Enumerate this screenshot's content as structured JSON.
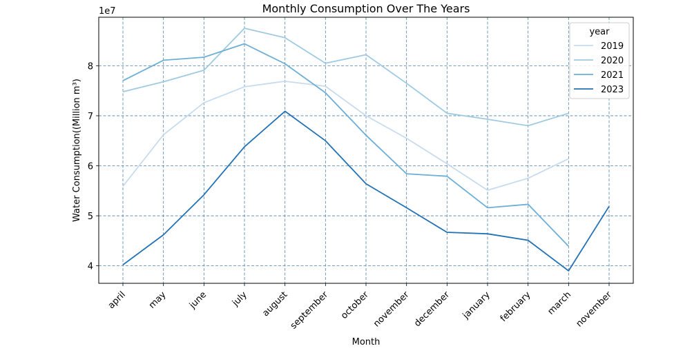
{
  "chart_data": {
    "type": "line",
    "title": "Monthly Consumption Over The Years",
    "xlabel": "Month",
    "ylabel": "Water Consumption((Million m³)",
    "y_offset_label": "1e7",
    "categories": [
      "april",
      "may",
      "june",
      "july",
      "august",
      "september",
      "october",
      "november",
      "december",
      "january",
      "february",
      "march",
      "november"
    ],
    "ylim": [
      36500000,
      89700000
    ],
    "yticks": [
      40000000,
      50000000,
      60000000,
      70000000,
      80000000
    ],
    "ytick_labels": [
      "4",
      "5",
      "6",
      "7",
      "8"
    ],
    "grid": true,
    "legend_title": "year",
    "legend_position": "top-right",
    "series": [
      {
        "name": "2019",
        "color": "#c6dbef",
        "values": [
          55900000,
          66200000,
          72600000,
          75800000,
          76900000,
          75900000,
          70000000,
          65500000,
          60400000,
          55100000,
          57500000,
          61400000,
          null
        ]
      },
      {
        "name": "2020",
        "color": "#9ecae1",
        "values": [
          74800000,
          76800000,
          79100000,
          87500000,
          85600000,
          80500000,
          82200000,
          76500000,
          70500000,
          69300000,
          68000000,
          70500000,
          null
        ]
      },
      {
        "name": "2021",
        "color": "#6baed6",
        "values": [
          77000000,
          81100000,
          81700000,
          84400000,
          80400000,
          74600000,
          66100000,
          58400000,
          57900000,
          51600000,
          52300000,
          43900000,
          null
        ]
      },
      {
        "name": "2023",
        "color": "#2171b5",
        "values": [
          40200000,
          46200000,
          54200000,
          63800000,
          70900000,
          65000000,
          56400000,
          51600000,
          46700000,
          46400000,
          45100000,
          39000000,
          51900000
        ]
      }
    ]
  }
}
